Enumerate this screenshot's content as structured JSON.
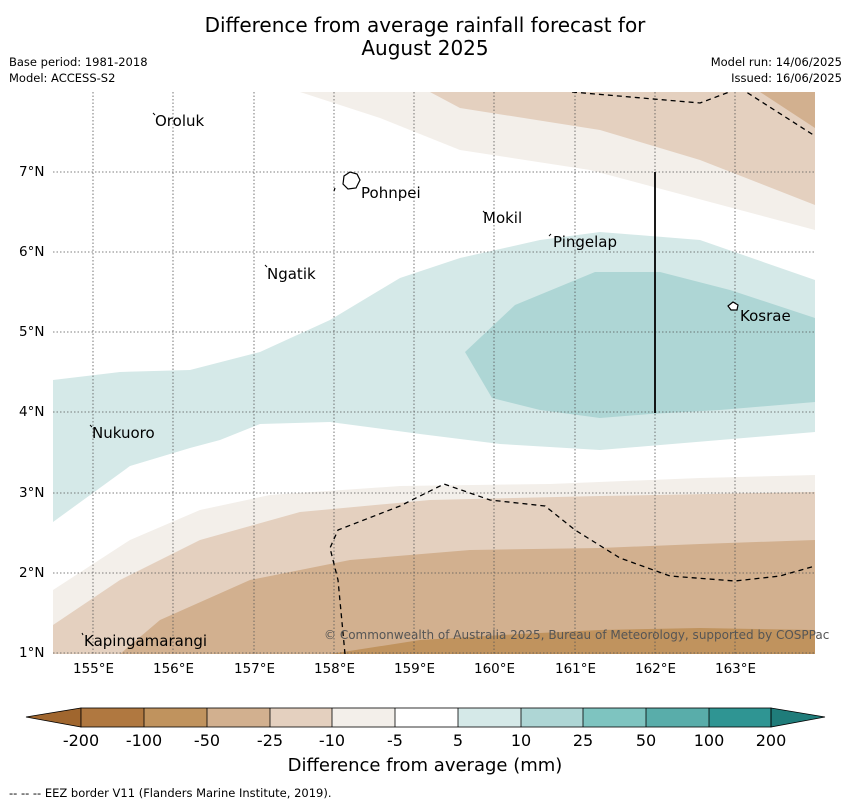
{
  "title_line1": "Difference from average rainfall forecast for",
  "title_line2": "August 2025",
  "base_period": "Base period: 1981-2018",
  "model": "Model: ACCESS-S2",
  "model_run": "Model run: 14/06/2025",
  "issued": "Issued: 16/06/2025",
  "x_ticks": [
    "155°E",
    "156°E",
    "157°E",
    "158°E",
    "159°E",
    "160°E",
    "161°E",
    "162°E",
    "163°E"
  ],
  "y_ticks": [
    "7°N",
    "6°N",
    "5°N",
    "4°N",
    "3°N",
    "2°N",
    "1°N"
  ],
  "places": {
    "oroluk": "Oroluk",
    "pohnpei": "Pohnpei",
    "mokil": "Mokil",
    "pingelap": "Pingelap",
    "ngatik": "Ngatik",
    "kosrae": "Kosrae",
    "nukuoro": "Nukuoro",
    "kapingamarangi": "Kapingamarangi"
  },
  "copyright": "© Commonwealth of Australia 2025, Bureau of Meteorology, supported by COSPPac",
  "colorbar": {
    "labels": [
      "-200",
      "-100",
      "-50",
      "-25",
      "-10",
      "-5",
      "5",
      "10",
      "25",
      "50",
      "100",
      "200"
    ],
    "colors": [
      "#b07840",
      "#c0935e",
      "#d2b08f",
      "#e4d0bf",
      "#f3efea",
      "#ffffff",
      "#d5e9e8",
      "#aed6d5",
      "#7ec4c0",
      "#59adaa",
      "#2f9593"
    ],
    "title": "Difference from average (mm)"
  },
  "footnote": "--  --  -- EEZ border V11 (Flanders Marine Institute, 2019)."
}
